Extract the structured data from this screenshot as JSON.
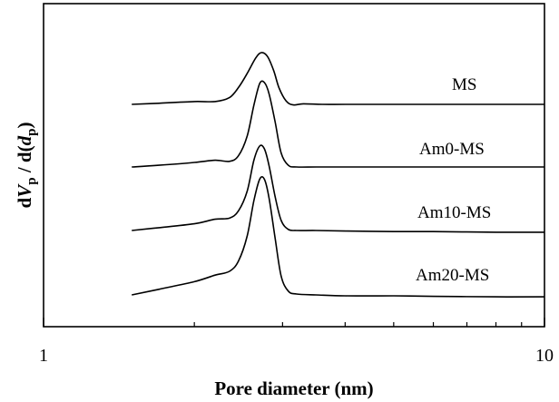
{
  "chart_data": {
    "type": "line",
    "xlabel": "Pore diameter (nm)",
    "ylabel": "dV_p / d(d_p)",
    "ylabel_parts": [
      "d",
      "V",
      "p",
      " / d(",
      "d",
      "p",
      ")"
    ],
    "x_scale": "log",
    "xlim": [
      1,
      10
    ],
    "x_tick_labels": [
      "1",
      "10"
    ],
    "x_minor_ticks": [
      2,
      3,
      4,
      5,
      6,
      7,
      8,
      9
    ],
    "y_units": "arbitrary, offset curves",
    "y_ticks_shown": false,
    "grid": false,
    "series": [
      {
        "name": "MS",
        "x": [
          1.5,
          1.7,
          2.0,
          2.2,
          2.35,
          2.45,
          2.55,
          2.65,
          2.72,
          2.8,
          2.88,
          2.95,
          3.05,
          3.15,
          3.3,
          3.6,
          4.0,
          5.0,
          6.0,
          8.0,
          10.0
        ],
        "y": [
          0.0,
          0.02,
          0.05,
          0.05,
          0.12,
          0.3,
          0.55,
          0.82,
          0.92,
          0.85,
          0.6,
          0.3,
          0.06,
          -0.01,
          0.01,
          0.0,
          0.0,
          0.0,
          0.0,
          0.0,
          0.0
        ]
      },
      {
        "name": "Am0-MS",
        "x": [
          1.5,
          1.7,
          2.0,
          2.2,
          2.35,
          2.45,
          2.55,
          2.63,
          2.7,
          2.76,
          2.82,
          2.9,
          2.98,
          3.08,
          3.2,
          3.5,
          4.0,
          5.0,
          6.0,
          8.0,
          10.0
        ],
        "y": [
          0.0,
          0.03,
          0.08,
          0.12,
          0.1,
          0.2,
          0.55,
          1.1,
          1.48,
          1.5,
          1.3,
          0.8,
          0.25,
          0.03,
          0.0,
          0.0,
          0.0,
          0.0,
          0.0,
          0.0,
          0.0
        ]
      },
      {
        "name": "Am10-MS",
        "x": [
          1.5,
          1.7,
          2.0,
          2.2,
          2.35,
          2.45,
          2.55,
          2.63,
          2.7,
          2.76,
          2.82,
          2.9,
          2.98,
          3.08,
          3.2,
          3.5,
          4.0,
          5.0,
          6.0,
          8.0,
          10.0
        ],
        "y": [
          0.0,
          0.05,
          0.12,
          0.2,
          0.22,
          0.35,
          0.7,
          1.25,
          1.5,
          1.45,
          1.15,
          0.6,
          0.18,
          0.02,
          0.0,
          0.0,
          -0.01,
          -0.02,
          -0.02,
          -0.03,
          -0.03
        ]
      },
      {
        "name": "Am20-MS",
        "x": [
          1.5,
          1.7,
          2.0,
          2.2,
          2.35,
          2.45,
          2.55,
          2.63,
          2.7,
          2.76,
          2.82,
          2.9,
          2.98,
          3.08,
          3.2,
          3.5,
          4.0,
          5.0,
          6.0,
          8.0,
          10.0
        ],
        "y": [
          0.0,
          0.12,
          0.28,
          0.42,
          0.5,
          0.72,
          1.25,
          2.0,
          2.45,
          2.45,
          2.05,
          1.2,
          0.4,
          0.08,
          0.02,
          0.0,
          -0.02,
          -0.02,
          -0.03,
          -0.04,
          -0.04
        ]
      }
    ]
  }
}
